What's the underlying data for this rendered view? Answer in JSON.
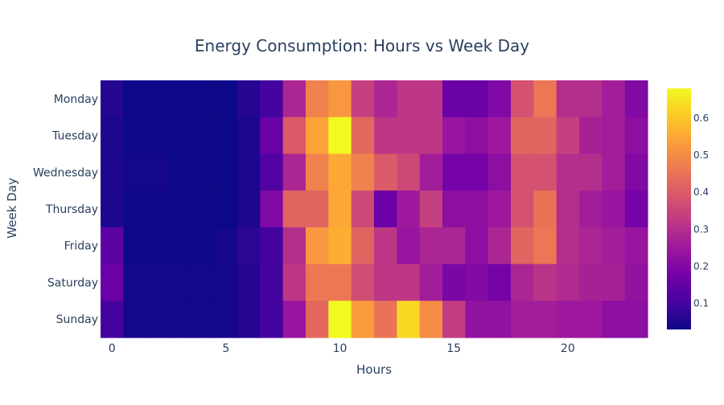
{
  "chart_data": {
    "type": "heatmap",
    "title": "Energy Consumption: Hours vs Week Day",
    "xlabel": "Hours",
    "ylabel": "Week Day",
    "x": [
      0,
      1,
      2,
      3,
      4,
      5,
      6,
      7,
      8,
      9,
      10,
      11,
      12,
      13,
      14,
      15,
      16,
      17,
      18,
      19,
      20,
      21,
      22,
      23
    ],
    "x_ticks": [
      0,
      5,
      10,
      15,
      20
    ],
    "y": [
      "Monday",
      "Tuesday",
      "Wednesday",
      "Thursday",
      "Friday",
      "Saturday",
      "Sunday"
    ],
    "z": [
      [
        0.06,
        0.03,
        0.03,
        0.03,
        0.03,
        0.03,
        0.06,
        0.1,
        0.28,
        0.48,
        0.52,
        0.34,
        0.28,
        0.32,
        0.32,
        0.16,
        0.16,
        0.2,
        0.38,
        0.46,
        0.3,
        0.3,
        0.26,
        0.2
      ],
      [
        0.05,
        0.03,
        0.03,
        0.03,
        0.03,
        0.03,
        0.05,
        0.16,
        0.4,
        0.54,
        0.68,
        0.43,
        0.32,
        0.32,
        0.32,
        0.24,
        0.22,
        0.25,
        0.42,
        0.42,
        0.34,
        0.27,
        0.26,
        0.22
      ],
      [
        0.05,
        0.04,
        0.04,
        0.03,
        0.03,
        0.03,
        0.05,
        0.12,
        0.28,
        0.48,
        0.55,
        0.48,
        0.4,
        0.36,
        0.26,
        0.18,
        0.18,
        0.22,
        0.38,
        0.38,
        0.3,
        0.3,
        0.26,
        0.2
      ],
      [
        0.05,
        0.03,
        0.03,
        0.03,
        0.03,
        0.03,
        0.05,
        0.2,
        0.42,
        0.42,
        0.55,
        0.36,
        0.16,
        0.25,
        0.34,
        0.22,
        0.22,
        0.25,
        0.38,
        0.45,
        0.3,
        0.26,
        0.24,
        0.18
      ],
      [
        0.14,
        0.03,
        0.03,
        0.03,
        0.03,
        0.04,
        0.07,
        0.1,
        0.3,
        0.52,
        0.56,
        0.42,
        0.32,
        0.24,
        0.28,
        0.28,
        0.22,
        0.28,
        0.42,
        0.46,
        0.3,
        0.28,
        0.26,
        0.24
      ],
      [
        0.16,
        0.04,
        0.04,
        0.04,
        0.04,
        0.04,
        0.06,
        0.1,
        0.32,
        0.46,
        0.46,
        0.37,
        0.32,
        0.32,
        0.26,
        0.19,
        0.2,
        0.18,
        0.28,
        0.31,
        0.29,
        0.27,
        0.27,
        0.23
      ],
      [
        0.1,
        0.04,
        0.04,
        0.04,
        0.04,
        0.04,
        0.06,
        0.1,
        0.24,
        0.43,
        0.68,
        0.53,
        0.45,
        0.63,
        0.5,
        0.33,
        0.23,
        0.23,
        0.26,
        0.26,
        0.25,
        0.25,
        0.22,
        0.22
      ]
    ],
    "zlim": [
      0.03,
      0.68
    ],
    "colorbar_ticks": [
      "0.1",
      "0.2",
      "0.3",
      "0.4",
      "0.5",
      "0.6"
    ],
    "colorscale": "Plasma",
    "colorscale_stops": [
      "#0d0887",
      "#46039f",
      "#7201a8",
      "#9c179e",
      "#bd3786",
      "#d8576b",
      "#ed7953",
      "#fb9f3a",
      "#fdca26",
      "#f0f921"
    ]
  }
}
